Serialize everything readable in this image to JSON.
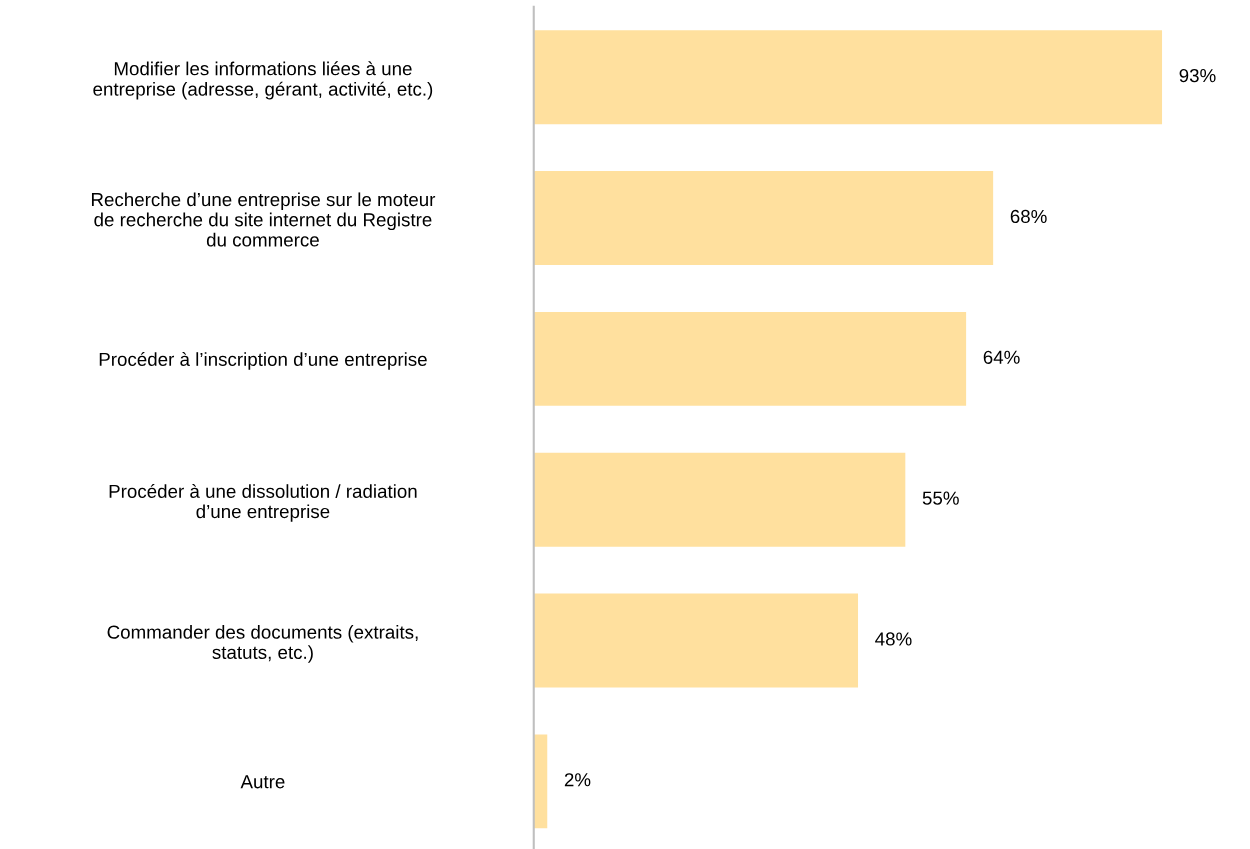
{
  "chart_data": {
    "type": "bar",
    "orientation": "horizontal",
    "categories": [
      "Modifier les informations liées à une\nentreprise (adresse, gérant, activité, etc.)",
      "Recherche d’une entreprise sur le moteur\nde recherche du site internet du Registre\ndu commerce",
      "Procéder à l’inscription d’une entreprise",
      "Procéder à une dissolution / radiation\nd’une entreprise",
      "Commander des documents (extraits,\nstatuts, etc.)",
      "Autre"
    ],
    "values": [
      93,
      68,
      64,
      55,
      48,
      2
    ],
    "value_labels": [
      "93%",
      "68%",
      "64%",
      "55%",
      "48%",
      "2%"
    ],
    "color": "#ffe09e",
    "grid": false,
    "legend": false
  }
}
